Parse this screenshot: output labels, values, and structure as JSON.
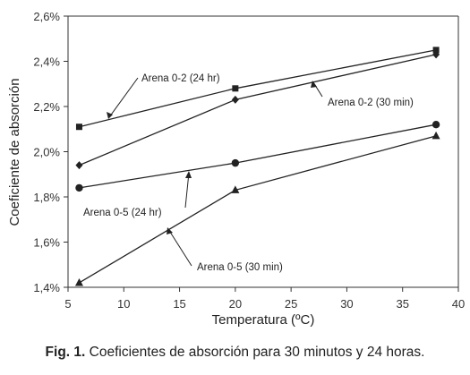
{
  "chart_data": {
    "type": "line",
    "xlabel": "Temperatura (ºC)",
    "ylabel": "Coeficiente de absorción",
    "xlim": [
      5,
      40
    ],
    "ylim": [
      1.4,
      2.6
    ],
    "x_ticks": [
      "5",
      "10",
      "15",
      "20",
      "25",
      "30",
      "35",
      "40"
    ],
    "y_ticks": [
      "1,4%",
      "1,6%",
      "1,8%",
      "2,0%",
      "2,2%",
      "2,4%",
      "2,6%"
    ],
    "grid": false,
    "x": [
      6,
      20,
      38
    ],
    "series": [
      {
        "name": "Arena 0-2 (24 hr)",
        "marker": "square",
        "values": [
          2.11,
          2.28,
          2.45
        ]
      },
      {
        "name": "Arena 0-2 (30 min)",
        "marker": "diamond",
        "values": [
          1.94,
          2.23,
          2.43
        ]
      },
      {
        "name": "Arena 0-5 (24 hr)",
        "marker": "circle",
        "values": [
          1.84,
          1.95,
          2.12
        ]
      },
      {
        "name": "Arena 0-5 (30 min)",
        "marker": "triangle",
        "values": [
          1.42,
          1.83,
          2.07
        ]
      }
    ],
    "line_color": "#222222"
  },
  "caption": {
    "label": "Fig. 1.",
    "text": " Coeficientes de absorción para 30 minutos y 24 horas."
  }
}
